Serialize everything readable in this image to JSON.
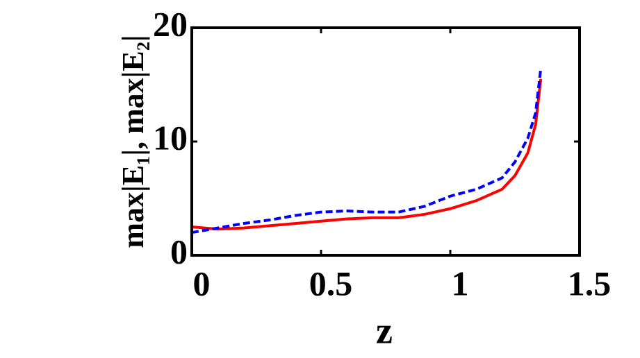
{
  "chart_data": {
    "type": "line",
    "x_label": "z",
    "y_label": "max|E₁|,  max|E₂|",
    "x": [
      0,
      0.1,
      0.2,
      0.3,
      0.4,
      0.5,
      0.6,
      0.7,
      0.8,
      0.9,
      1.0,
      1.1,
      1.2,
      1.25,
      1.3,
      1.33,
      1.35
    ],
    "series": [
      {
        "color": "#ff0000",
        "dash": false,
        "values": [
          2.5,
          2.3,
          2.4,
          2.6,
          2.8,
          3.0,
          3.2,
          3.3,
          3.3,
          3.6,
          4.1,
          4.8,
          5.8,
          7.0,
          9.0,
          11.5,
          15.5
        ]
      },
      {
        "color": "#0000ff",
        "dash": true,
        "values": [
          2.0,
          2.4,
          2.8,
          3.1,
          3.5,
          3.8,
          3.9,
          3.8,
          3.8,
          4.3,
          5.2,
          5.8,
          6.8,
          8.2,
          10.3,
          12.5,
          16.4
        ]
      }
    ],
    "xlim": [
      0,
      1.5
    ],
    "xticks": [
      0,
      0.5,
      1,
      1.5
    ],
    "ylim": [
      0,
      20
    ],
    "yticks": [
      0,
      10,
      20
    ]
  }
}
